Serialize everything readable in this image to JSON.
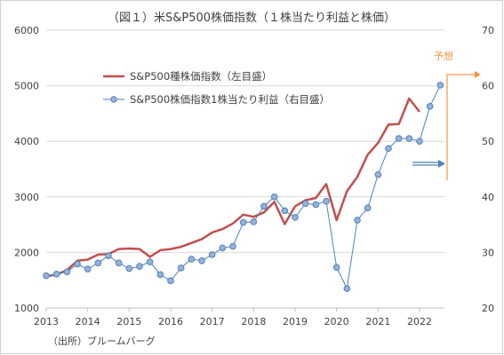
{
  "chart_data": {
    "type": "line",
    "title": "（図１）米S&P500株価指数（１株当たり利益と株価）",
    "source": "（出所）ブルームバーグ",
    "annotation": "予想",
    "x": [
      "2013",
      "2014",
      "2015",
      "2016",
      "2017",
      "2018",
      "2019",
      "2020",
      "2021",
      "2022"
    ],
    "y_left": {
      "ticks": [
        1000,
        2000,
        3000,
        4000,
        5000,
        6000
      ],
      "range": [
        1000,
        6000
      ]
    },
    "y_right": {
      "ticks": [
        20,
        30,
        40,
        50,
        60,
        70
      ],
      "range": [
        20,
        70
      ]
    },
    "x_range": [
      2013,
      2022.6
    ],
    "grid": true,
    "legend_position": "top-left",
    "series": [
      {
        "name": "S&P500種株価指数（左目盛）",
        "axis": "left",
        "color": "#c0504d",
        "marker": false,
        "points": [
          [
            2013.0,
            1570
          ],
          [
            2013.25,
            1600
          ],
          [
            2013.5,
            1680
          ],
          [
            2013.75,
            1850
          ],
          [
            2014.0,
            1870
          ],
          [
            2014.25,
            1960
          ],
          [
            2014.5,
            1970
          ],
          [
            2014.75,
            2060
          ],
          [
            2015.0,
            2070
          ],
          [
            2015.25,
            2060
          ],
          [
            2015.5,
            1920
          ],
          [
            2015.75,
            2040
          ],
          [
            2016.0,
            2060
          ],
          [
            2016.25,
            2100
          ],
          [
            2016.5,
            2170
          ],
          [
            2016.75,
            2240
          ],
          [
            2017.0,
            2360
          ],
          [
            2017.25,
            2420
          ],
          [
            2017.5,
            2520
          ],
          [
            2017.75,
            2680
          ],
          [
            2018.0,
            2640
          ],
          [
            2018.25,
            2720
          ],
          [
            2018.5,
            2910
          ],
          [
            2018.75,
            2510
          ],
          [
            2019.0,
            2830
          ],
          [
            2019.25,
            2940
          ],
          [
            2019.5,
            2980
          ],
          [
            2019.75,
            3230
          ],
          [
            2020.0,
            2580
          ],
          [
            2020.25,
            3100
          ],
          [
            2020.5,
            3360
          ],
          [
            2020.75,
            3760
          ],
          [
            2021.0,
            3970
          ],
          [
            2021.25,
            4300
          ],
          [
            2021.5,
            4310
          ],
          [
            2021.75,
            4770
          ],
          [
            2022.0,
            4530
          ]
        ]
      },
      {
        "name": "S&P500株価指数1株当たり利益（右目盛）",
        "axis": "right",
        "color": "#4f81bd",
        "marker": true,
        "points": [
          [
            2013.0,
            25.8
          ],
          [
            2013.25,
            26.1
          ],
          [
            2013.5,
            26.5
          ],
          [
            2013.75,
            27.9
          ],
          [
            2014.0,
            27.0
          ],
          [
            2014.25,
            28.1
          ],
          [
            2014.5,
            29.4
          ],
          [
            2014.75,
            28.1
          ],
          [
            2015.0,
            27.1
          ],
          [
            2015.25,
            27.5
          ],
          [
            2015.5,
            28.3
          ],
          [
            2015.75,
            26.0
          ],
          [
            2016.0,
            24.9
          ],
          [
            2016.25,
            27.2
          ],
          [
            2016.5,
            28.8
          ],
          [
            2016.75,
            28.5
          ],
          [
            2017.0,
            29.6
          ],
          [
            2017.25,
            30.8
          ],
          [
            2017.5,
            31.1
          ],
          [
            2017.75,
            35.4
          ],
          [
            2018.0,
            35.5
          ],
          [
            2018.25,
            38.3
          ],
          [
            2018.5,
            40.0
          ],
          [
            2018.75,
            37.5
          ],
          [
            2019.0,
            36.3
          ],
          [
            2019.25,
            38.8
          ],
          [
            2019.5,
            38.6
          ],
          [
            2019.75,
            39.2
          ],
          [
            2020.0,
            27.3
          ],
          [
            2020.25,
            23.5
          ],
          [
            2020.5,
            35.8
          ],
          [
            2020.75,
            38.0
          ],
          [
            2021.0,
            44.0
          ],
          [
            2021.25,
            48.7
          ],
          [
            2021.5,
            50.5
          ],
          [
            2021.75,
            50.5
          ],
          [
            2022.0,
            50.0
          ],
          [
            2022.25,
            56.3
          ],
          [
            2022.5,
            60.1
          ]
        ]
      }
    ]
  }
}
